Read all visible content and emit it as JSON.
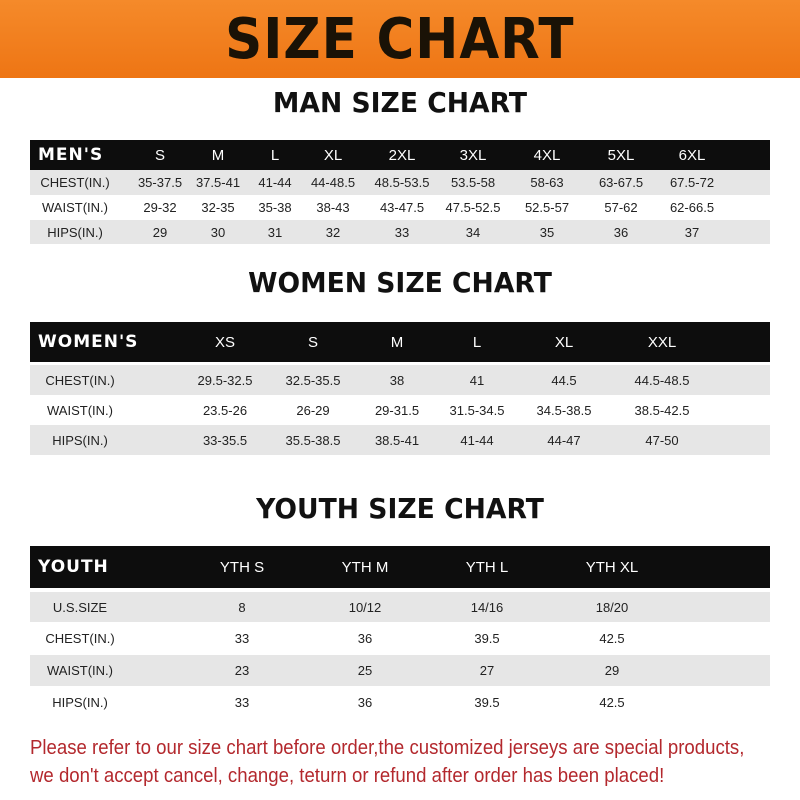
{
  "title": "SIZE CHART",
  "men": {
    "title": "MAN SIZE CHART",
    "header": [
      "MEN'S",
      "S",
      "M",
      "L",
      "XL",
      "2XL",
      "3XL",
      "4XL",
      "5XL",
      "6XL"
    ],
    "rows": [
      [
        "CHEST(IN.)",
        "35-37.5",
        "37.5-41",
        "41-44",
        "44-48.5",
        "48.5-53.5",
        "53.5-58",
        "58-63",
        "63-67.5",
        "67.5-72"
      ],
      [
        "WAIST(IN.)",
        "29-32",
        "32-35",
        "35-38",
        "38-43",
        "43-47.5",
        "47.5-52.5",
        "52.5-57",
        "57-62",
        "62-66.5"
      ],
      [
        "HIPS(IN.)",
        "29",
        "30",
        "31",
        "32",
        "33",
        "34",
        "35",
        "36",
        "37"
      ]
    ]
  },
  "women": {
    "title": "WOMEN SIZE CHART",
    "header": [
      "WOMEN'S",
      "XS",
      "S",
      "M",
      "L",
      "XL",
      "XXL"
    ],
    "rows": [
      [
        "CHEST(IN.)",
        "29.5-32.5",
        "32.5-35.5",
        "38",
        "41",
        "44.5",
        "44.5-48.5"
      ],
      [
        "WAIST(IN.)",
        "23.5-26",
        "26-29",
        "29-31.5",
        "31.5-34.5",
        "34.5-38.5",
        "38.5-42.5"
      ],
      [
        "HIPS(IN.)",
        "33-35.5",
        "35.5-38.5",
        "38.5-41",
        "41-44",
        "44-47",
        "47-50"
      ]
    ]
  },
  "youth": {
    "title": "YOUTH SIZE CHART",
    "header": [
      "YOUTH",
      "YTH S",
      "YTH M",
      "YTH L",
      "YTH XL"
    ],
    "rows": [
      [
        "U.S.SIZE",
        "8",
        "10/12",
        "14/16",
        "18/20"
      ],
      [
        "CHEST(IN.)",
        "33",
        "36",
        "39.5",
        "42.5"
      ],
      [
        "WAIST(IN.)",
        "23",
        "25",
        "27",
        "29"
      ],
      [
        "HIPS(IN.)",
        "33",
        "36",
        "39.5",
        "42.5"
      ]
    ]
  },
  "footer": {
    "line1": "Please refer to our size chart before order,the customized jerseys are special products,",
    "line2": "we don't accept cancel, change, teturn or refund after order has been placed!"
  }
}
